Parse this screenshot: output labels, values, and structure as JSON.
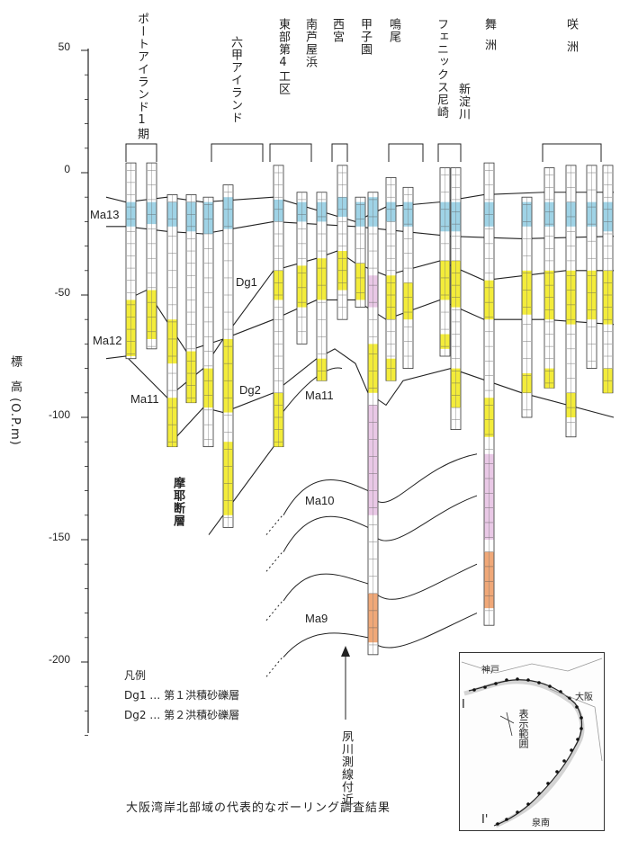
{
  "yaxis": {
    "title": "標　高 (O.P.m)",
    "ticks": [
      {
        "label": "50",
        "value": 50
      },
      {
        "label": "0",
        "value": 0
      },
      {
        "label": "-50",
        "value": -50
      },
      {
        "label": "-100",
        "value": -100
      },
      {
        "label": "-150",
        "value": -150
      },
      {
        "label": "-200",
        "value": -200
      }
    ]
  },
  "sites": [
    {
      "id": "port-island",
      "label": "ポートアイランド1期"
    },
    {
      "id": "rokko-island",
      "label": "六甲アイランド"
    },
    {
      "id": "higashibu-4",
      "label": "東部第4工区"
    },
    {
      "id": "minami-ashiya",
      "label": "南芦屋浜"
    },
    {
      "id": "nishinomiya",
      "label": "西宮"
    },
    {
      "id": "koshien",
      "label": "甲子園"
    },
    {
      "id": "naruo",
      "label": "鳴尾"
    },
    {
      "id": "phoenix-amagasaki",
      "label": "フェニックス尼崎"
    },
    {
      "id": "shin-yodogawa",
      "label": "新淀川"
    },
    {
      "id": "maishima",
      "label": "舞洲"
    },
    {
      "id": "sakishima",
      "label": "咲洲"
    }
  ],
  "layers": {
    "ma13": "Ma13",
    "ma12": "Ma12",
    "ma11_left": "Ma11",
    "ma11_center": "Ma11",
    "ma10": "Ma10",
    "ma9": "Ma9",
    "dg1": "Dg1",
    "dg2": "Dg2"
  },
  "fault_label": "摩耶断層",
  "section_note": "夙川測線付近",
  "legend": {
    "title": "凡例",
    "items": [
      {
        "key": "Dg1",
        "desc": "Dg1 … 第１洪積砂礫層"
      },
      {
        "key": "Dg2",
        "desc": "Dg2 … 第２洪積砂礫層"
      }
    ]
  },
  "caption": "大阪湾岸北部域の代表的なボーリング調査結果",
  "inset_map": {
    "labels": {
      "kobe": "神戸",
      "osaka": "大阪",
      "sennan": "泉南",
      "range": "表示範囲",
      "start": "I",
      "end": "I'"
    }
  },
  "colors": {
    "blue_clay": "#9fd3e6",
    "yellow_gravel": "#f3ec3a",
    "pink_clay": "#e9c8e6",
    "orange": "#f0a878",
    "line": "#222222"
  }
}
